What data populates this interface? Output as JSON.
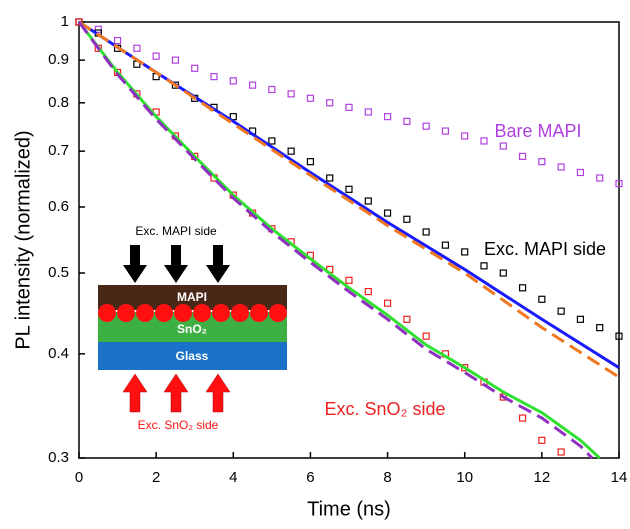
{
  "chart_data": {
    "type": "scatter",
    "xlabel": "Time (ns)",
    "ylabel": "PL intensity (normalized)",
    "xlim": [
      0,
      14
    ],
    "xticks": [
      0,
      2,
      4,
      6,
      8,
      10,
      12,
      14
    ],
    "ylim": [
      0.3,
      1
    ],
    "yticks": [
      0.3,
      0.4,
      0.5,
      0.6,
      0.7,
      0.8,
      0.9,
      1
    ],
    "yscale": "log",
    "grid": false,
    "series": [
      {
        "name": "Bare MAPI",
        "color": "#b040e0",
        "style": "markers",
        "x": [
          0,
          0.5,
          1,
          1.5,
          2,
          2.5,
          3,
          3.5,
          4,
          4.5,
          5,
          5.5,
          6,
          6.5,
          7,
          7.5,
          8,
          8.5,
          9,
          9.5,
          10,
          10.5,
          11,
          11.5,
          12,
          12.5,
          13,
          13.5,
          14
        ],
        "values": [
          1.0,
          0.98,
          0.95,
          0.93,
          0.91,
          0.9,
          0.88,
          0.86,
          0.85,
          0.84,
          0.83,
          0.82,
          0.81,
          0.8,
          0.79,
          0.78,
          0.77,
          0.76,
          0.75,
          0.74,
          0.73,
          0.72,
          0.71,
          0.69,
          0.68,
          0.67,
          0.66,
          0.65,
          0.64
        ]
      },
      {
        "name": "Exc. MAPI side",
        "color": "#000000",
        "style": "markers",
        "x": [
          0,
          0.5,
          1,
          1.5,
          2,
          2.5,
          3,
          3.5,
          4,
          4.5,
          5,
          5.5,
          6,
          6.5,
          7,
          7.5,
          8,
          8.5,
          9,
          9.5,
          10,
          10.5,
          11,
          11.5,
          12,
          12.5,
          13,
          13.5,
          14
        ],
        "values": [
          1.0,
          0.97,
          0.93,
          0.89,
          0.86,
          0.84,
          0.81,
          0.79,
          0.77,
          0.74,
          0.72,
          0.7,
          0.68,
          0.65,
          0.63,
          0.61,
          0.59,
          0.58,
          0.56,
          0.54,
          0.53,
          0.51,
          0.5,
          0.48,
          0.465,
          0.45,
          0.44,
          0.43,
          0.42
        ]
      },
      {
        "name": "Exc. SnO₂ side",
        "color": "#ee2020",
        "style": "markers",
        "x": [
          0,
          0.5,
          1,
          1.5,
          2,
          2.5,
          3,
          3.5,
          4,
          4.5,
          5,
          5.5,
          6,
          6.5,
          7,
          7.5,
          8,
          8.5,
          9,
          9.5,
          10,
          10.5,
          11,
          11.5,
          12,
          12.5
        ],
        "values": [
          1.0,
          0.93,
          0.87,
          0.82,
          0.78,
          0.73,
          0.69,
          0.65,
          0.62,
          0.59,
          0.565,
          0.545,
          0.525,
          0.505,
          0.49,
          0.475,
          0.46,
          0.44,
          0.42,
          0.4,
          0.385,
          0.37,
          0.355,
          0.335,
          0.315,
          0.305
        ]
      },
      {
        "color": "#1a1aff",
        "style": "solid",
        "x": [
          0,
          2,
          4,
          6,
          8,
          10,
          12,
          14
        ],
        "values": [
          1,
          0.87,
          0.76,
          0.66,
          0.575,
          0.505,
          0.44,
          0.385
        ]
      },
      {
        "color": "#f07820",
        "style": "dashed",
        "x": [
          0,
          2,
          4,
          6,
          8,
          10,
          12,
          14
        ],
        "values": [
          1,
          0.87,
          0.755,
          0.655,
          0.57,
          0.5,
          0.43,
          0.375
        ]
      },
      {
        "color": "#30e030",
        "style": "solid",
        "x": [
          0,
          1,
          2,
          3,
          4,
          5,
          6,
          7,
          8,
          9,
          10,
          11,
          12,
          13,
          13.5
        ],
        "values": [
          1,
          0.87,
          0.77,
          0.69,
          0.62,
          0.565,
          0.52,
          0.48,
          0.445,
          0.41,
          0.385,
          0.36,
          0.34,
          0.315,
          0.3
        ]
      },
      {
        "color": "#9030c0",
        "style": "dashed",
        "x": [
          0,
          1,
          2,
          3,
          4,
          5,
          6,
          7,
          8,
          9,
          10,
          11,
          12,
          13,
          13.3
        ],
        "values": [
          1,
          0.865,
          0.765,
          0.685,
          0.615,
          0.56,
          0.515,
          0.475,
          0.44,
          0.405,
          0.38,
          0.355,
          0.335,
          0.31,
          0.3
        ]
      }
    ],
    "inset": {
      "top_label": "Exc. MAPI side",
      "layers": [
        "MAPI",
        "SnO₂",
        "Glass"
      ],
      "bottom_label": "Exc. SnO₂ side"
    }
  }
}
